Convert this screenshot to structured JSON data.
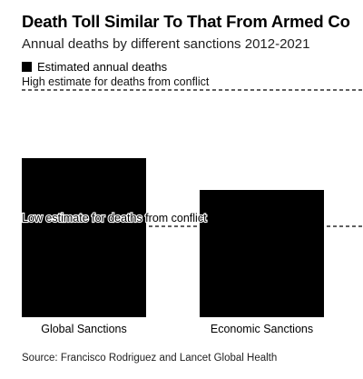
{
  "title": "Death Toll Similar To That From Armed Co",
  "subtitle": "Annual deaths by different sanctions 2012-2021",
  "legend_label": "Estimated annual deaths",
  "source": "Source: Francisco Rodriguez and Lancet Global Health",
  "colors": {
    "bar": "#000000",
    "reference_line": "#000000",
    "background": "#ffffff"
  },
  "chart_data": {
    "type": "bar",
    "title": "Death Toll Similar To That From Armed Co",
    "subtitle": "Annual deaths by different sanctions 2012-2021",
    "categories": [
      "Global Sanctions",
      "Economic Sanctions"
    ],
    "series": [
      {
        "name": "Estimated annual deaths",
        "values": [
          0.7,
          0.56
        ]
      }
    ],
    "reference_lines": [
      {
        "label": "High estimate for deaths from conflict",
        "value": 1.0
      },
      {
        "label": "Low estimate for deaths from conflict",
        "value": 0.4
      }
    ],
    "ylim": [
      0,
      1.0
    ],
    "grid": false,
    "legend": "top-left"
  }
}
